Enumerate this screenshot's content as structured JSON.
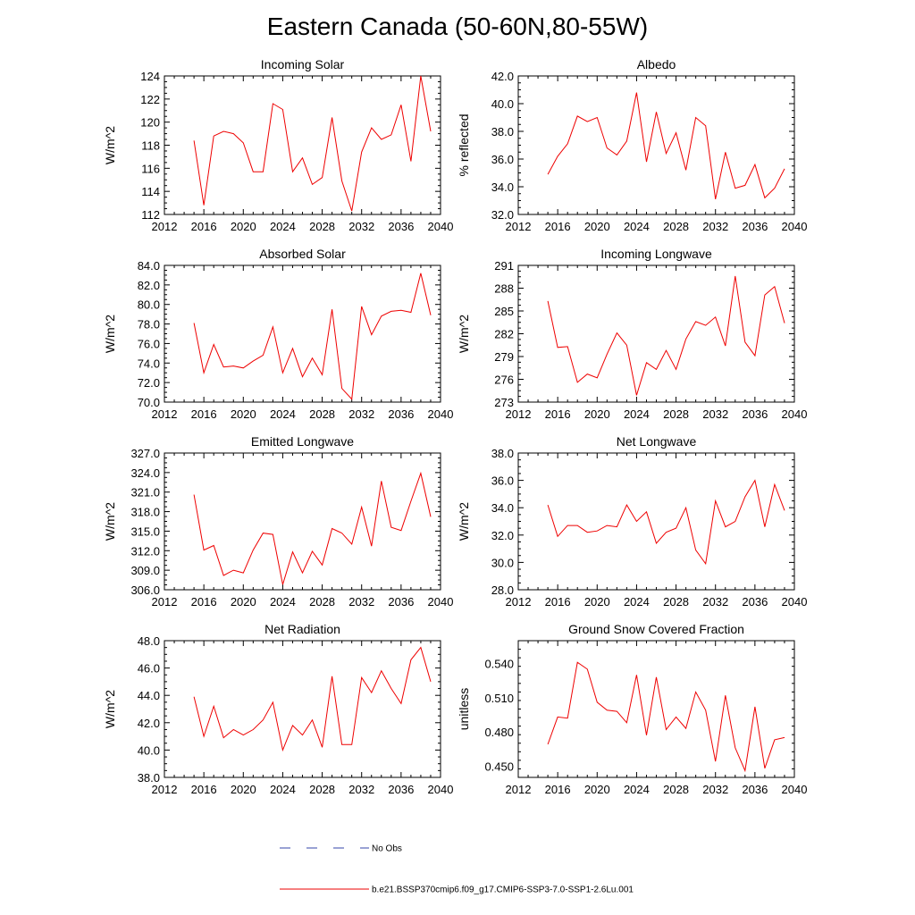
{
  "title": "Eastern Canada (50-60N,80-55W)",
  "legend": [
    {
      "label": "No Obs",
      "color": "#3344aa",
      "style": "dashed"
    },
    {
      "label": "b.e21.BSSP370cmip6.f09_g17.CMIP6-SSP3-7.0-SSP1-2.6Lu.001",
      "color": "#ee0000",
      "style": "solid"
    }
  ],
  "chart_data": [
    {
      "type": "line",
      "title": "Incoming Solar",
      "ylabel": "W/m^2",
      "xlim": [
        2012,
        2040
      ],
      "ylim": [
        112,
        124
      ],
      "xticks": [
        2012,
        2016,
        2020,
        2024,
        2028,
        2032,
        2036,
        2040
      ],
      "xtick_labels": [
        "2012",
        "2016",
        "2020",
        "2024",
        "2028",
        "2032",
        "2036",
        "2040"
      ],
      "yticks": [
        112,
        114,
        116,
        118,
        120,
        122,
        124
      ],
      "ytick_labels": [
        "112",
        "114",
        "116",
        "118",
        "120",
        "122",
        "124"
      ],
      "x": [
        2015,
        2016,
        2017,
        2018,
        2019,
        2020,
        2021,
        2022,
        2023,
        2024,
        2025,
        2026,
        2027,
        2028,
        2029,
        2030,
        2031,
        2032,
        2033,
        2034,
        2035,
        2036,
        2037,
        2038,
        2039
      ],
      "series": [
        {
          "color": "#ee0000",
          "values": [
            118.4,
            112.8,
            118.8,
            119.2,
            119.0,
            118.2,
            115.7,
            115.7,
            121.6,
            121.1,
            115.7,
            116.9,
            114.6,
            115.2,
            120.4,
            114.9,
            112.3,
            117.4,
            119.5,
            118.5,
            118.9,
            121.5,
            116.6,
            124.0,
            119.2
          ]
        }
      ]
    },
    {
      "type": "line",
      "title": "Albedo",
      "ylabel": "% reflected",
      "xlim": [
        2012,
        2040
      ],
      "ylim": [
        32,
        42
      ],
      "xticks": [
        2012,
        2016,
        2020,
        2024,
        2028,
        2032,
        2036,
        2040
      ],
      "xtick_labels": [
        "2012",
        "2016",
        "2020",
        "2024",
        "2028",
        "2032",
        "2036",
        "2040"
      ],
      "yticks": [
        32,
        34,
        36,
        38,
        40,
        42
      ],
      "ytick_labels": [
        "32.0",
        "34.0",
        "36.0",
        "38.0",
        "40.0",
        "42.0"
      ],
      "x": [
        2015,
        2016,
        2017,
        2018,
        2019,
        2020,
        2021,
        2022,
        2023,
        2024,
        2025,
        2026,
        2027,
        2028,
        2029,
        2030,
        2031,
        2032,
        2033,
        2034,
        2035,
        2036,
        2037,
        2038,
        2039
      ],
      "series": [
        {
          "color": "#ee0000",
          "values": [
            34.9,
            36.2,
            37.1,
            39.1,
            38.7,
            39.0,
            36.8,
            36.3,
            37.3,
            40.8,
            35.8,
            39.4,
            36.4,
            37.9,
            35.2,
            39.0,
            38.4,
            33.1,
            36.5,
            33.9,
            34.1,
            35.6,
            33.2,
            33.9,
            35.3
          ]
        }
      ]
    },
    {
      "type": "line",
      "title": "Absorbed Solar",
      "ylabel": "W/m^2",
      "xlim": [
        2012,
        2040
      ],
      "ylim": [
        70,
        84
      ],
      "xticks": [
        2012,
        2016,
        2020,
        2024,
        2028,
        2032,
        2036,
        2040
      ],
      "xtick_labels": [
        "2012",
        "2016",
        "2020",
        "2024",
        "2028",
        "2032",
        "2036",
        "2040"
      ],
      "yticks": [
        70,
        72,
        74,
        76,
        78,
        80,
        82,
        84
      ],
      "ytick_labels": [
        "70.0",
        "72.0",
        "74.0",
        "76.0",
        "78.0",
        "80.0",
        "82.0",
        "84.0"
      ],
      "x": [
        2015,
        2016,
        2017,
        2018,
        2019,
        2020,
        2021,
        2022,
        2023,
        2024,
        2025,
        2026,
        2027,
        2028,
        2029,
        2030,
        2031,
        2032,
        2033,
        2034,
        2035,
        2036,
        2037,
        2038,
        2039
      ],
      "series": [
        {
          "color": "#ee0000",
          "values": [
            78.1,
            73.0,
            75.9,
            73.6,
            73.7,
            73.5,
            74.2,
            74.8,
            77.7,
            73.0,
            75.5,
            72.6,
            74.5,
            72.8,
            79.5,
            71.4,
            70.3,
            79.8,
            76.9,
            78.8,
            79.3,
            79.4,
            79.2,
            83.2,
            78.9
          ]
        }
      ]
    },
    {
      "type": "line",
      "title": "Incoming Longwave",
      "ylabel": "W/m^2",
      "xlim": [
        2012,
        2040
      ],
      "ylim": [
        273,
        291
      ],
      "xticks": [
        2012,
        2016,
        2020,
        2024,
        2028,
        2032,
        2036,
        2040
      ],
      "xtick_labels": [
        "2012",
        "2016",
        "2020",
        "2024",
        "2028",
        "2032",
        "2036",
        "2040"
      ],
      "yticks": [
        273,
        276,
        279,
        282,
        285,
        288,
        291
      ],
      "ytick_labels": [
        "273",
        "276",
        "279",
        "282",
        "285",
        "288",
        "291"
      ],
      "x": [
        2015,
        2016,
        2017,
        2018,
        2019,
        2020,
        2021,
        2022,
        2023,
        2024,
        2025,
        2026,
        2027,
        2028,
        2029,
        2030,
        2031,
        2032,
        2033,
        2034,
        2035,
        2036,
        2037,
        2038,
        2039
      ],
      "series": [
        {
          "color": "#ee0000",
          "values": [
            286.3,
            280.2,
            280.3,
            275.6,
            276.7,
            276.2,
            279.3,
            282.1,
            280.5,
            273.9,
            278.2,
            277.3,
            279.8,
            277.3,
            281.3,
            283.6,
            283.1,
            284.2,
            280.4,
            289.6,
            280.9,
            279.1,
            287.1,
            288.2,
            283.4
          ]
        }
      ]
    },
    {
      "type": "line",
      "title": "Emitted Longwave",
      "ylabel": "W/m^2",
      "xlim": [
        2012,
        2040
      ],
      "ylim": [
        306,
        327
      ],
      "xticks": [
        2012,
        2016,
        2020,
        2024,
        2028,
        2032,
        2036,
        2040
      ],
      "xtick_labels": [
        "2012",
        "2016",
        "2020",
        "2024",
        "2028",
        "2032",
        "2036",
        "2040"
      ],
      "yticks": [
        306,
        309,
        312,
        315,
        318,
        321,
        324,
        327
      ],
      "ytick_labels": [
        "306.0",
        "309.0",
        "312.0",
        "315.0",
        "318.0",
        "321.0",
        "324.0",
        "327.0"
      ],
      "x": [
        2015,
        2016,
        2017,
        2018,
        2019,
        2020,
        2021,
        2022,
        2023,
        2024,
        2025,
        2026,
        2027,
        2028,
        2029,
        2030,
        2031,
        2032,
        2033,
        2034,
        2035,
        2036,
        2037,
        2038,
        2039
      ],
      "series": [
        {
          "color": "#ee0000",
          "values": [
            320.6,
            312.1,
            312.8,
            308.2,
            309.0,
            308.6,
            312.1,
            314.7,
            314.5,
            306.8,
            311.8,
            308.6,
            311.9,
            309.8,
            315.4,
            314.7,
            313.0,
            318.7,
            312.7,
            322.7,
            315.6,
            315.1,
            319.6,
            323.9,
            317.2
          ]
        }
      ]
    },
    {
      "type": "line",
      "title": "Net Longwave",
      "ylabel": "W/m^2",
      "xlim": [
        2012,
        2040
      ],
      "ylim": [
        28,
        38
      ],
      "xticks": [
        2012,
        2016,
        2020,
        2024,
        2028,
        2032,
        2036,
        2040
      ],
      "xtick_labels": [
        "2012",
        "2016",
        "2020",
        "2024",
        "2028",
        "2032",
        "2036",
        "2040"
      ],
      "yticks": [
        28,
        30,
        32,
        34,
        36,
        38
      ],
      "ytick_labels": [
        "28.0",
        "30.0",
        "32.0",
        "34.0",
        "36.0",
        "38.0"
      ],
      "x": [
        2015,
        2016,
        2017,
        2018,
        2019,
        2020,
        2021,
        2022,
        2023,
        2024,
        2025,
        2026,
        2027,
        2028,
        2029,
        2030,
        2031,
        2032,
        2033,
        2034,
        2035,
        2036,
        2037,
        2038,
        2039
      ],
      "series": [
        {
          "color": "#ee0000",
          "values": [
            34.2,
            31.9,
            32.7,
            32.7,
            32.2,
            32.3,
            32.7,
            32.6,
            34.2,
            33.0,
            33.7,
            31.4,
            32.2,
            32.5,
            34.0,
            30.9,
            29.9,
            34.5,
            32.6,
            33.0,
            34.8,
            36.0,
            32.6,
            35.7,
            33.8
          ]
        }
      ]
    },
    {
      "type": "line",
      "title": "Net Radiation",
      "ylabel": "W/m^2",
      "xlim": [
        2012,
        2040
      ],
      "ylim": [
        38,
        48
      ],
      "xticks": [
        2012,
        2016,
        2020,
        2024,
        2028,
        2032,
        2036,
        2040
      ],
      "xtick_labels": [
        "2012",
        "2016",
        "2020",
        "2024",
        "2028",
        "2032",
        "2036",
        "2040"
      ],
      "yticks": [
        38,
        40,
        42,
        44,
        46,
        48
      ],
      "ytick_labels": [
        "38.0",
        "40.0",
        "42.0",
        "44.0",
        "46.0",
        "48.0"
      ],
      "x": [
        2015,
        2016,
        2017,
        2018,
        2019,
        2020,
        2021,
        2022,
        2023,
        2024,
        2025,
        2026,
        2027,
        2028,
        2029,
        2030,
        2031,
        2032,
        2033,
        2034,
        2035,
        2036,
        2037,
        2038,
        2039
      ],
      "series": [
        {
          "color": "#ee0000",
          "values": [
            43.9,
            41.0,
            43.2,
            40.9,
            41.5,
            41.1,
            41.5,
            42.2,
            43.5,
            40.0,
            41.8,
            41.1,
            42.2,
            40.2,
            45.4,
            40.4,
            40.4,
            45.3,
            44.2,
            45.8,
            44.5,
            43.4,
            46.6,
            47.5,
            45.0
          ]
        }
      ]
    },
    {
      "type": "line",
      "title": "Ground Snow Covered Fraction",
      "ylabel": "unitless",
      "xlim": [
        2012,
        2040
      ],
      "ylim": [
        0.44,
        0.56
      ],
      "xticks": [
        2012,
        2016,
        2020,
        2024,
        2028,
        2032,
        2036,
        2040
      ],
      "xtick_labels": [
        "2012",
        "2016",
        "2020",
        "2024",
        "2028",
        "2032",
        "2036",
        "2040"
      ],
      "yticks": [
        0.45,
        0.48,
        0.51,
        0.54
      ],
      "ytick_labels": [
        "0.450",
        "0.480",
        "0.510",
        "0.540"
      ],
      "x": [
        2015,
        2016,
        2017,
        2018,
        2019,
        2020,
        2021,
        2022,
        2023,
        2024,
        2025,
        2026,
        2027,
        2028,
        2029,
        2030,
        2031,
        2032,
        2033,
        2034,
        2035,
        2036,
        2037,
        2038,
        2039
      ],
      "series": [
        {
          "color": "#ee0000",
          "values": [
            0.469,
            0.493,
            0.492,
            0.541,
            0.535,
            0.506,
            0.499,
            0.498,
            0.488,
            0.53,
            0.477,
            0.528,
            0.482,
            0.493,
            0.483,
            0.515,
            0.499,
            0.454,
            0.512,
            0.466,
            0.446,
            0.502,
            0.448,
            0.473,
            0.475
          ]
        }
      ]
    }
  ]
}
